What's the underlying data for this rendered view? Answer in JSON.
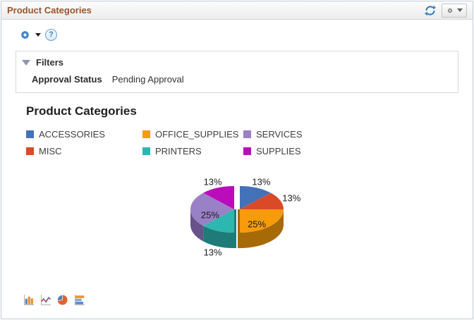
{
  "header": {
    "title": "Product Categories"
  },
  "toolbar": {
    "help_glyph": "?"
  },
  "filters": {
    "title": "Filters",
    "fields": [
      {
        "label": "Approval Status",
        "value": "Pending Approval"
      }
    ]
  },
  "chart": {
    "title": "Product Categories"
  },
  "chart_data": {
    "type": "pie",
    "title": "Product Categories",
    "style": "3d-exploded",
    "legend_position": "top",
    "slices": [
      {
        "label": "ACCESSORIES",
        "value": 12.5,
        "display": "13%",
        "color": "#4472b8",
        "dark": "#2d4f82",
        "label_placement": "outside"
      },
      {
        "label": "MISC",
        "value": 12.5,
        "display": "13%",
        "color": "#da4a28",
        "dark": "#96321a",
        "label_placement": "outside"
      },
      {
        "label": "OFFICE_SUPPLIES",
        "value": 25,
        "display": "25%",
        "color": "#f79b0b",
        "dark": "#a66a08",
        "label_placement": "inside"
      },
      {
        "label": "PRINTERS",
        "value": 12.5,
        "display": "13%",
        "color": "#2eb6b0",
        "dark": "#1e7b77",
        "label_placement": "outside"
      },
      {
        "label": "SERVICES",
        "value": 25,
        "display": "25%",
        "color": "#9a80c6",
        "dark": "#675289",
        "label_placement": "inside"
      },
      {
        "label": "SUPPLIES",
        "value": 12.5,
        "display": "13%",
        "color": "#ba0cba",
        "dark": "#7c067c",
        "label_placement": "outside"
      }
    ],
    "legend_order": [
      "ACCESSORIES",
      "OFFICE_SUPPLIES",
      "SERVICES",
      "MISC",
      "PRINTERS",
      "SUPPLIES"
    ]
  },
  "chart_type_switcher": {
    "icons": [
      "bar-chart-icon",
      "line-chart-icon",
      "pie-chart-icon",
      "horizontal-bar-chart-icon"
    ]
  }
}
